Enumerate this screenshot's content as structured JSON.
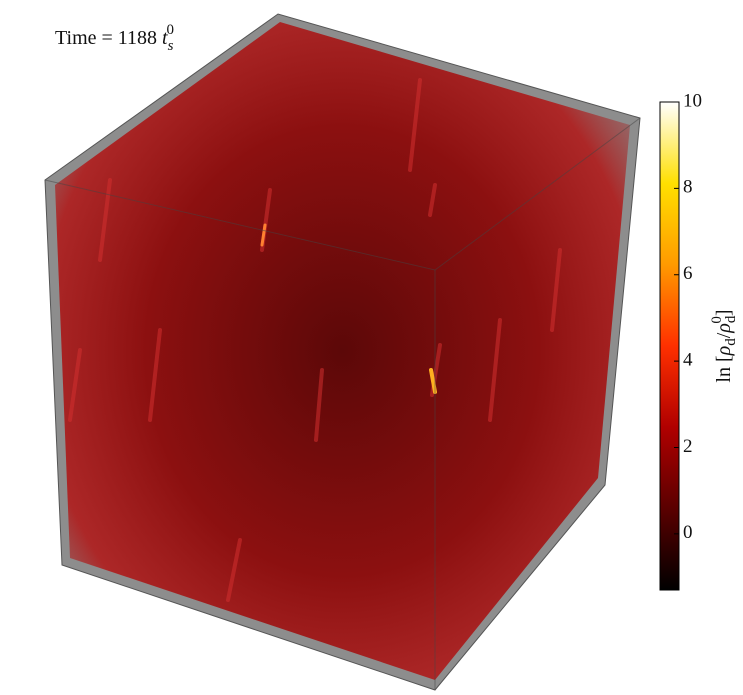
{
  "chart_data": {
    "type": "volume",
    "title": {
      "prefix": "Time = 1188 ",
      "symbol": "t",
      "sub": "s",
      "sup": "0"
    },
    "colorbar": {
      "label": [
        "ln [",
        "ρ",
        "d",
        "/",
        "ρ",
        "d",
        "0",
        "]"
      ],
      "clim": [
        -1.3,
        10
      ],
      "cticks": [
        0,
        2,
        4,
        6,
        8,
        10
      ],
      "colormap": [
        "#000000",
        "#5a0000",
        "#b00000",
        "#ff3000",
        "#ff9a00",
        "#ffe000",
        "#ffffff"
      ]
    }
  }
}
